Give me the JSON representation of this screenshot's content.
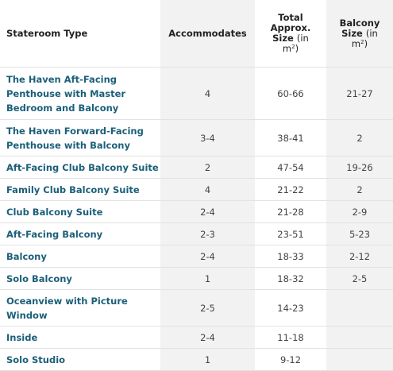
{
  "header": {
    "type": "Stateroom Type",
    "accommodates": "Accommodates",
    "size_l1": "Total",
    "size_l2": "Approx.",
    "size_l3": "Size",
    "size_l3b": "(in",
    "size_unit": "m",
    "size_exp": "2",
    "balcony_l1": "Balcony",
    "balcony_l2": "Size",
    "balcony_l2b": "(in",
    "balcony_unit": "m",
    "balcony_exp": "2"
  },
  "rows": [
    {
      "type": "The Haven Aft-Facing Penthouse with Master Bedroom and Balcony",
      "accommodates": "4",
      "size": "60-66",
      "balcony": "21-27"
    },
    {
      "type": "The Haven Forward-Facing Penthouse with Balcony",
      "accommodates": "3-4",
      "size": "38-41",
      "balcony": "2"
    },
    {
      "type": "Aft-Facing Club Balcony Suite",
      "accommodates": "2",
      "size": "47-54",
      "balcony": "19-26"
    },
    {
      "type": "Family Club Balcony Suite",
      "accommodates": "4",
      "size": "21-22",
      "balcony": "2"
    },
    {
      "type": "Club Balcony Suite",
      "accommodates": "2-4",
      "size": "21-28",
      "balcony": "2-9"
    },
    {
      "type": "Aft-Facing Balcony",
      "accommodates": "2-3",
      "size": "23-51",
      "balcony": "5-23"
    },
    {
      "type": "Balcony",
      "accommodates": "2-4",
      "size": "18-33",
      "balcony": "2-12"
    },
    {
      "type": "Solo Balcony",
      "accommodates": "1",
      "size": "18-32",
      "balcony": "2-5"
    },
    {
      "type": "Oceanview with Picture Window",
      "accommodates": "2-5",
      "size": "14-23",
      "balcony": ""
    },
    {
      "type": "Inside",
      "accommodates": "2-4",
      "size": "11-18",
      "balcony": ""
    },
    {
      "type": "Solo Studio",
      "accommodates": "1",
      "size": "9-12",
      "balcony": ""
    }
  ]
}
